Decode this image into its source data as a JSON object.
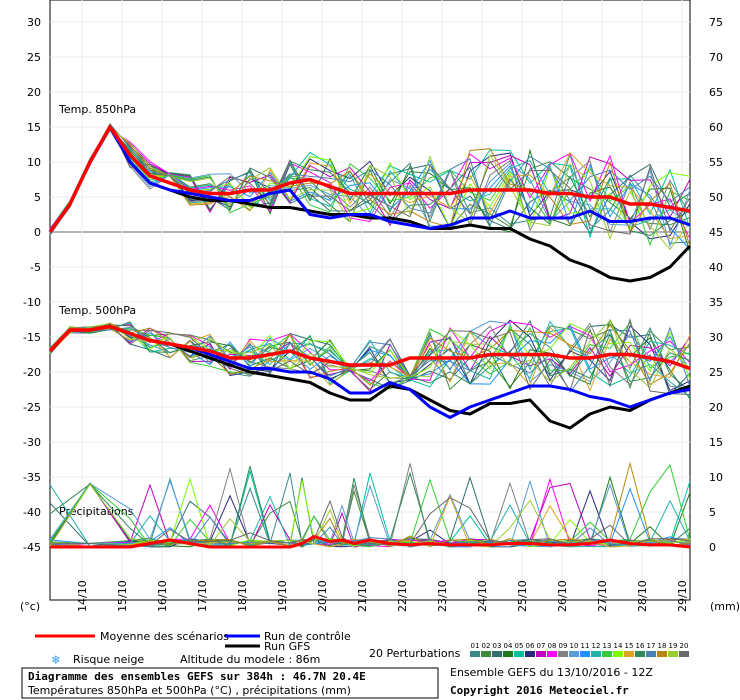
{
  "chart_data": {
    "type": "line",
    "left_axis_ticks": [
      "30",
      "25",
      "20",
      "15",
      "10",
      "5",
      "0",
      "-5",
      "-10",
      "-15",
      "-20",
      "-25",
      "-30",
      "-35",
      "-40",
      "-45"
    ],
    "right_axis_ticks": [
      "75",
      "70",
      "65",
      "60",
      "55",
      "50",
      "45",
      "40",
      "35",
      "30",
      "25",
      "20",
      "15",
      "10",
      "5",
      "0"
    ],
    "left_unit": "(°c)",
    "right_unit": "(mm)",
    "x_labels": [
      "14/10",
      "15/10",
      "16/10",
      "17/10",
      "18/10",
      "19/10",
      "20/10",
      "21/10",
      "22/10",
      "23/10",
      "24/10",
      "25/10",
      "26/10",
      "27/10",
      "28/10",
      "29/10"
    ],
    "panel_labels": {
      "t850": "Temp. 850hPa",
      "t500": "Temp. 500hPa",
      "precip": "Précipitations"
    },
    "t850": {
      "x": [
        0,
        0.5,
        1,
        1.5,
        2,
        2.5,
        3,
        3.5,
        4,
        4.5,
        5,
        5.5,
        6,
        6.5,
        7,
        7.5,
        8,
        8.5,
        9,
        9.5,
        10,
        10.5,
        11,
        11.5,
        12,
        12.5,
        13,
        13.5,
        14,
        14.5,
        15,
        15.5,
        16
      ],
      "mean": [
        0,
        4,
        10,
        15,
        11,
        8,
        7,
        6,
        5.5,
        5.5,
        6,
        6,
        7,
        7.5,
        6.5,
        5.5,
        5.5,
        5.5,
        5.5,
        5.5,
        5.5,
        6,
        6,
        6,
        6,
        5.5,
        5.5,
        5,
        5,
        4,
        4,
        3.5,
        3
      ],
      "control": [
        0,
        4,
        10,
        15,
        10,
        7,
        6,
        5.5,
        5,
        4.5,
        4.5,
        5.5,
        6,
        2.5,
        2,
        2.5,
        2.5,
        1.5,
        1,
        0.5,
        1,
        2,
        2,
        3,
        2,
        2,
        2,
        3,
        1.5,
        1.5,
        2,
        2,
        1
      ],
      "gfs": [
        0,
        4,
        10,
        15,
        10,
        7,
        6,
        5,
        4.5,
        4.5,
        4,
        3.5,
        3.5,
        3,
        2.5,
        2.5,
        2,
        2,
        1.5,
        0.5,
        0.5,
        1,
        0.5,
        0.5,
        -1,
        -2,
        -4,
        -5,
        -6.5,
        -7,
        -6.5,
        -5,
        -2
      ]
    },
    "t500": {
      "x": [
        0,
        0.5,
        1,
        1.5,
        2,
        2.5,
        3,
        3.5,
        4,
        4.5,
        5,
        5.5,
        6,
        6.5,
        7,
        7.5,
        8,
        8.5,
        9,
        9.5,
        10,
        10.5,
        11,
        11.5,
        12,
        12.5,
        13,
        13.5,
        14,
        14.5,
        15,
        15.5,
        16
      ],
      "mean": [
        -17,
        -14,
        -14,
        -13.5,
        -14.5,
        -15.5,
        -16,
        -16.5,
        -17,
        -18,
        -18,
        -17.5,
        -17,
        -18,
        -18.5,
        -19,
        -19,
        -19,
        -18,
        -18,
        -18,
        -18,
        -17.5,
        -17.5,
        -17.5,
        -17.5,
        -18,
        -18,
        -17.5,
        -17.5,
        -18,
        -18.5,
        -19.5
      ],
      "control": [
        -17,
        -14,
        -14,
        -13.5,
        -14.5,
        -15.5,
        -16,
        -16.5,
        -17.5,
        -18.5,
        -19.5,
        -19.5,
        -20,
        -20,
        -21,
        -23,
        -23,
        -21.5,
        -22.5,
        -25,
        -26.5,
        -25,
        -24,
        -23,
        -22,
        -22,
        -22.5,
        -23.5,
        -24,
        -25,
        -24,
        -23,
        -22.5
      ],
      "gfs": [
        -17,
        -14,
        -14,
        -13.5,
        -14.5,
        -15.5,
        -16,
        -17,
        -18,
        -19,
        -20,
        -20.5,
        -21,
        -21.5,
        -23,
        -24,
        -24,
        -22,
        -22.5,
        -24,
        -25.5,
        -26,
        -24.5,
        -24.5,
        -24,
        -27,
        -28,
        -26,
        -25,
        -25.5,
        -24,
        -23,
        -22
      ]
    },
    "precip": {
      "x": [
        0,
        1,
        2,
        2.5,
        3,
        3.5,
        4,
        4.5,
        5,
        5.5,
        6,
        6.3,
        6.6,
        7,
        7.3,
        7.6,
        8,
        8.5,
        9,
        9.5,
        10,
        10.5,
        11,
        11.5,
        12,
        12.5,
        13,
        13.5,
        14,
        14.5,
        15,
        15.5,
        16
      ],
      "mean": [
        0,
        0,
        0,
        0.5,
        1,
        0.5,
        0,
        0,
        0,
        0,
        0,
        0.5,
        1.5,
        0.8,
        1,
        0.5,
        1,
        0.5,
        0.3,
        0.5,
        0.3,
        0.3,
        0.3,
        0.5,
        0.5,
        0.3,
        0.3,
        0.5,
        1,
        0.5,
        0.3,
        0.3,
        0
      ]
    },
    "legend": {
      "mean": "Moyenne des scénarios",
      "control": "Run de contrôle",
      "gfs": "Run GFS",
      "perturbations": "20 Perturbations",
      "perturbation_numbers": [
        "01",
        "02",
        "03",
        "04",
        "05",
        "06",
        "07",
        "08",
        "09",
        "10",
        "11",
        "12",
        "13",
        "14",
        "15",
        "16",
        "17",
        "18",
        "19",
        "20"
      ],
      "snow": "Risque neige",
      "altitude": "Altitude du modele : 86m"
    },
    "colors": {
      "mean": "#ff0000",
      "control": "#0000ff",
      "gfs": "#000000",
      "perturbations": [
        "#3a8a8a",
        "#3d8c3d",
        "#2f6f6f",
        "#1e7a1e",
        "#00c0a0",
        "#2a2a80",
        "#c000c0",
        "#ff00ff",
        "#808080",
        "#5a9bd5",
        "#1e90ff",
        "#20b2aa",
        "#32cd32",
        "#7cfc00",
        "#daa520",
        "#2e8b57",
        "#4682b4",
        "#b8860b",
        "#9acd32",
        "#696969"
      ]
    }
  },
  "footer": {
    "title": "Diagramme des ensembles GEFS sur 384h : 46.7N 20.4E",
    "subtitle": "Températures 850hPa et 500hPa (°C) , précipitations (mm)",
    "run": "Ensemble GEFS du 13/10/2016 - 12Z",
    "copyright": "Copyright 2016 Meteociel.fr"
  }
}
